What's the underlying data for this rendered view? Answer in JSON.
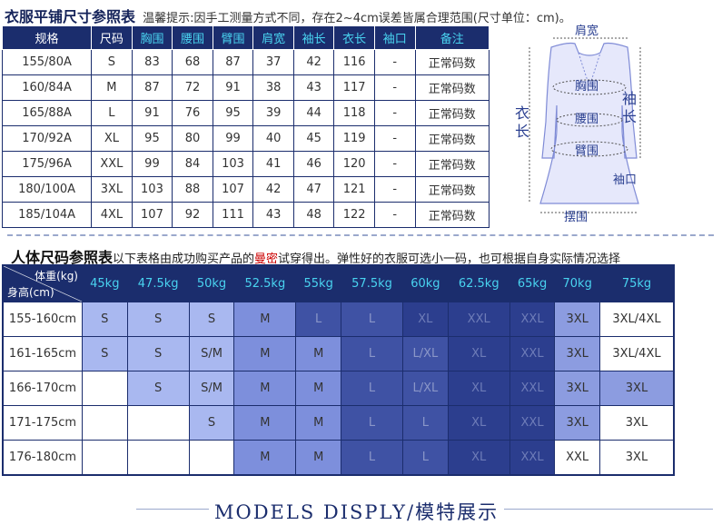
{
  "header": {
    "title": "衣服平铺尺寸参照表",
    "note": "温馨提示:因手工测量方式不同，存在2~4cm误差皆属合理范围(尺寸单位：cm)。"
  },
  "flat_table": {
    "columns": [
      "规格",
      "尺码",
      "胸围",
      "腰围",
      "臂围",
      "肩宽",
      "袖长",
      "衣长",
      "袖口",
      "备注"
    ],
    "rows": [
      [
        "155/80A",
        "S",
        "83",
        "68",
        "87",
        "37",
        "42",
        "116",
        "-",
        "正常码数"
      ],
      [
        "160/84A",
        "M",
        "87",
        "72",
        "91",
        "38",
        "43",
        "117",
        "-",
        "正常码数"
      ],
      [
        "165/88A",
        "L",
        "91",
        "76",
        "95",
        "39",
        "44",
        "118",
        "-",
        "正常码数"
      ],
      [
        "170/92A",
        "XL",
        "95",
        "80",
        "99",
        "40",
        "45",
        "119",
        "-",
        "正常码数"
      ],
      [
        "175/96A",
        "XXL",
        "99",
        "84",
        "103",
        "41",
        "46",
        "120",
        "-",
        "正常码数"
      ],
      [
        "180/100A",
        "3XL",
        "103",
        "88",
        "107",
        "42",
        "47",
        "121",
        "-",
        "正常码数"
      ],
      [
        "185/104A",
        "4XL",
        "107",
        "92",
        "111",
        "43",
        "48",
        "122",
        "-",
        "正常码数"
      ]
    ]
  },
  "figure": {
    "labels": {
      "shoulder": "肩宽",
      "chest": "胸围",
      "waist": "腰围",
      "arm": "臂围",
      "sleeve_1": "袖",
      "sleeve_2": "长",
      "length_1": "衣",
      "length_2": "长",
      "cuff": "袖口",
      "hem": "摆围"
    }
  },
  "body_section": {
    "title": "人体尺码参照表",
    "note_before": "以下表格由成功购买产品的",
    "note_red": "曼密",
    "note_after": "试穿得出。弹性好的衣服可选小一码，也可根据自身实际情况选择",
    "corner_weight": "体重(kg)",
    "corner_height": "身高(cm)",
    "weights": [
      "45kg",
      "47.5kg",
      "50kg",
      "52.5kg",
      "55kg",
      "57.5kg",
      "60kg",
      "62.5kg",
      "65kg",
      "70kg",
      "75kg"
    ],
    "rows": [
      {
        "height": "155-160cm",
        "cells": [
          "S",
          "S",
          "S",
          "M",
          "L",
          "L",
          "XL",
          "XXL",
          "XXL",
          "3XL",
          "3XL/4XL"
        ],
        "shade": [
          1,
          1,
          1,
          2,
          3,
          3,
          4,
          4,
          4,
          5,
          0
        ]
      },
      {
        "height": "161-165cm",
        "cells": [
          "S",
          "S",
          "S/M",
          "M",
          "M",
          "L",
          "L/XL",
          "XL",
          "XXL",
          "3XL",
          "3XL/4XL"
        ],
        "shade": [
          1,
          1,
          1,
          2,
          2,
          3,
          3,
          4,
          4,
          5,
          0
        ]
      },
      {
        "height": "166-170cm",
        "cells": [
          "",
          "S",
          "S/M",
          "M",
          "M",
          "L",
          "L/XL",
          "XL",
          "XXL",
          "3XL",
          "3XL"
        ],
        "shade": [
          0,
          1,
          1,
          2,
          2,
          3,
          3,
          4,
          4,
          5,
          5
        ]
      },
      {
        "height": "171-175cm",
        "cells": [
          "",
          "",
          "S",
          "M",
          "M",
          "L",
          "L",
          "XL",
          "XXL",
          "3XL",
          "3XL"
        ],
        "shade": [
          0,
          0,
          1,
          2,
          2,
          3,
          3,
          4,
          4,
          5,
          0
        ]
      },
      {
        "height": "176-180cm",
        "cells": [
          "",
          "",
          "",
          "M",
          "M",
          "L",
          "L",
          "XL",
          "XXL",
          "XXL",
          "3XL"
        ],
        "shade": [
          0,
          0,
          0,
          2,
          2,
          3,
          3,
          4,
          4,
          0,
          0
        ]
      }
    ]
  },
  "footer": {
    "text": "MODELS DISPLY/模特展示"
  }
}
